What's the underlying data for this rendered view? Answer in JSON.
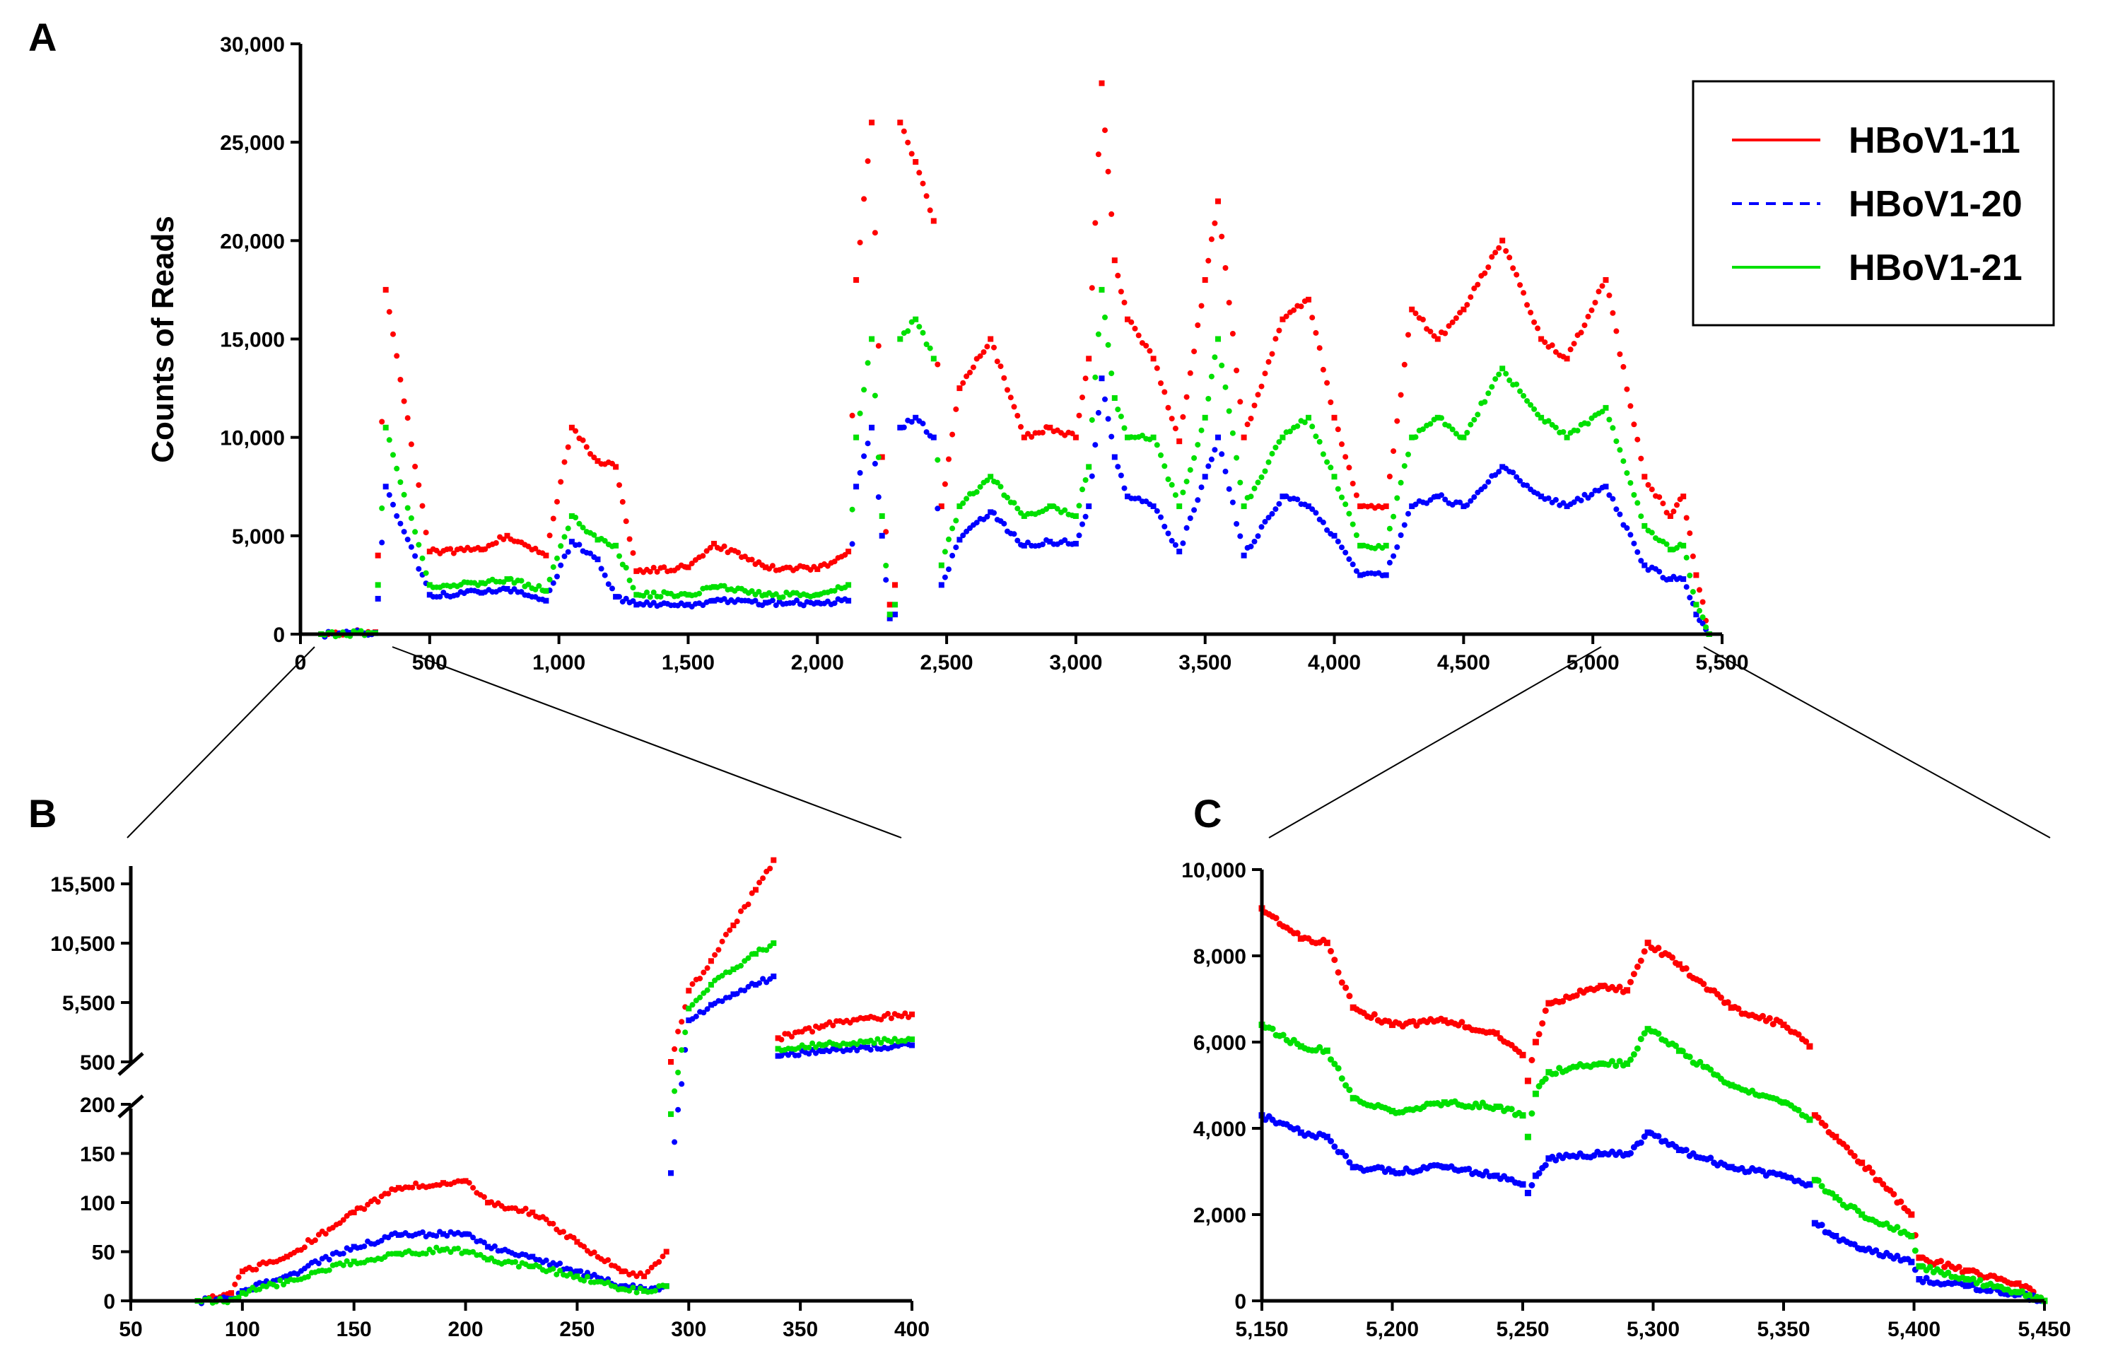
{
  "chart_data": [
    {
      "panel": "A",
      "type": "scatter",
      "title": "",
      "xlabel": "",
      "ylabel": "Counts of Reads",
      "xlim": [
        0,
        5500
      ],
      "ylim": [
        0,
        30000
      ],
      "x_ticks": [
        0,
        500,
        1000,
        1500,
        2000,
        2500,
        3000,
        3500,
        4000,
        4500,
        5000,
        5500
      ],
      "x_tick_labels": [
        "0",
        "500",
        "1,000",
        "1,500",
        "2,000",
        "2,500",
        "3,000",
        "3,500",
        "4,000",
        "4,500",
        "5,000",
        "5,500"
      ],
      "y_ticks": [
        0,
        5000,
        10000,
        15000,
        20000,
        25000,
        30000
      ],
      "y_tick_labels": [
        "0",
        "5,000",
        "10,000",
        "15,000",
        "20,000",
        "25,000",
        "30,000"
      ],
      "legend": {
        "placement": "top-right",
        "entries": [
          "HBoV1-11",
          "HBoV1-20",
          "HBoV1-21"
        ]
      },
      "x": [
        80,
        290,
        300,
        330,
        500,
        700,
        800,
        950,
        1050,
        1150,
        1220,
        1300,
        1500,
        1600,
        1800,
        2000,
        2120,
        2150,
        2210,
        2250,
        2280,
        2300,
        2320,
        2380,
        2450,
        2480,
        2550,
        2670,
        2800,
        2900,
        3000,
        3050,
        3100,
        3150,
        3200,
        3300,
        3400,
        3500,
        3550,
        3650,
        3800,
        3900,
        4000,
        4100,
        4200,
        4300,
        4400,
        4500,
        4650,
        4800,
        4900,
        5050,
        5200,
        5300,
        5350,
        5400,
        5450
      ],
      "series": [
        {
          "name": "HBoV1-11",
          "color": "#ff0000",
          "values": [
            0,
            100,
            4000,
            17500,
            4200,
            4300,
            5000,
            4000,
            10500,
            8800,
            8500,
            3200,
            3400,
            4600,
            3400,
            3300,
            4200,
            18000,
            26000,
            9000,
            1500,
            2500,
            26000,
            24000,
            21000,
            6500,
            12500,
            15000,
            10000,
            10500,
            10000,
            14000,
            28000,
            19000,
            16000,
            14000,
            9800,
            18000,
            22000,
            10000,
            16000,
            17000,
            11000,
            6500,
            6500,
            16500,
            15000,
            16500,
            20000,
            15000,
            14000,
            18000,
            8000,
            6000,
            7000,
            3000,
            0
          ]
        },
        {
          "name": "HBoV1-20",
          "color": "#0000ff",
          "values": [
            0,
            70,
            1800,
            7500,
            2000,
            2100,
            2300,
            1700,
            4700,
            3800,
            1900,
            1500,
            1500,
            1700,
            1600,
            1600,
            1700,
            7500,
            10500,
            5000,
            800,
            1000,
            10500,
            11000,
            10000,
            2500,
            4800,
            6200,
            4500,
            4700,
            4600,
            6500,
            13000,
            9000,
            7000,
            6500,
            4200,
            8000,
            10000,
            4000,
            7000,
            6500,
            5000,
            3000,
            3000,
            6500,
            7000,
            6500,
            8500,
            7000,
            6500,
            7500,
            3500,
            2800,
            2800,
            1000,
            0
          ]
        },
        {
          "name": "HBoV1-21",
          "color": "#00e000",
          "values": [
            0,
            50,
            2500,
            10500,
            2500,
            2600,
            2800,
            2200,
            6000,
            4800,
            4500,
            2000,
            2000,
            2400,
            2000,
            2000,
            2500,
            10000,
            15000,
            6000,
            1000,
            1500,
            15000,
            16000,
            14000,
            3500,
            6500,
            8000,
            6000,
            6500,
            6000,
            8500,
            17500,
            12000,
            10000,
            10000,
            6500,
            11000,
            15000,
            6500,
            10000,
            11000,
            8000,
            4500,
            4500,
            10000,
            11000,
            10000,
            13500,
            11000,
            10000,
            11500,
            5500,
            4300,
            4500,
            1500,
            0
          ]
        }
      ]
    },
    {
      "panel": "B",
      "type": "scatter",
      "title": "",
      "xlabel": "",
      "ylabel": "",
      "xlim": [
        50,
        400
      ],
      "y_axis_break": {
        "lower_range": [
          0,
          200
        ],
        "upper_range": [
          500,
          17000
        ]
      },
      "x_ticks": [
        50,
        100,
        150,
        200,
        250,
        300,
        350,
        400
      ],
      "x_tick_labels": [
        "50",
        "100",
        "150",
        "200",
        "250",
        "300",
        "350",
        "400"
      ],
      "y_ticks_lower": [
        0,
        50,
        100,
        150,
        200
      ],
      "y_tick_labels_lower": [
        "0",
        "50",
        "100",
        "150",
        "200"
      ],
      "y_ticks_upper": [
        500,
        5500,
        10500,
        15500
      ],
      "y_tick_labels_upper": [
        "500",
        "5,500",
        "10,500",
        "15,500"
      ],
      "x": [
        80,
        95,
        100,
        120,
        150,
        170,
        190,
        200,
        210,
        230,
        250,
        270,
        280,
        290,
        292,
        300,
        310,
        320,
        330,
        338,
        340,
        360,
        380,
        400
      ],
      "series": [
        {
          "name": "HBoV1-11",
          "color": "#ff0000",
          "values": [
            0,
            8,
            30,
            45,
            90,
            115,
            120,
            122,
            100,
            90,
            60,
            30,
            25,
            50,
            500,
            6500,
            9000,
            12000,
            15000,
            17500,
            2500,
            3500,
            4200,
            4500
          ]
        },
        {
          "name": "HBoV1-20",
          "color": "#0000ff",
          "values": [
            0,
            2,
            10,
            25,
            55,
            67,
            68,
            68,
            55,
            45,
            30,
            15,
            12,
            15,
            130,
            4000,
            5300,
            6200,
            7000,
            7700,
            1000,
            1400,
            1700,
            1900
          ]
        },
        {
          "name": "HBoV1-21",
          "color": "#00e000",
          "values": [
            0,
            1,
            8,
            20,
            40,
            48,
            52,
            50,
            42,
            35,
            25,
            12,
            10,
            15,
            190,
            5000,
            7000,
            8300,
            9600,
            10500,
            1600,
            1900,
            2200,
            2400
          ]
        }
      ]
    },
    {
      "panel": "C",
      "type": "scatter",
      "title": "",
      "xlabel": "",
      "ylabel": "",
      "xlim": [
        5150,
        5450
      ],
      "ylim": [
        0,
        10000
      ],
      "x_ticks": [
        5150,
        5200,
        5250,
        5300,
        5350,
        5400,
        5450
      ],
      "x_tick_labels": [
        "5,150",
        "5,200",
        "5,250",
        "5,300",
        "5,350",
        "5,400",
        "5,450"
      ],
      "y_ticks": [
        0,
        2000,
        4000,
        6000,
        8000,
        10000
      ],
      "y_tick_labels": [
        "0",
        "2,000",
        "4,000",
        "6,000",
        "8,000",
        "10,000"
      ],
      "x": [
        5150,
        5165,
        5175,
        5185,
        5200,
        5220,
        5240,
        5250,
        5252,
        5255,
        5260,
        5280,
        5290,
        5298,
        5310,
        5330,
        5350,
        5360,
        5362,
        5370,
        5380,
        5399,
        5402,
        5420,
        5440,
        5450
      ],
      "series": [
        {
          "name": "HBoV1-11",
          "color": "#ff0000",
          "values": [
            9100,
            8400,
            8300,
            6800,
            6400,
            6500,
            6200,
            5700,
            5100,
            6000,
            6900,
            7300,
            7200,
            8300,
            7800,
            6800,
            6400,
            5900,
            4300,
            3800,
            3200,
            2000,
            1000,
            700,
            400,
            0
          ]
        },
        {
          "name": "HBoV1-20",
          "color": "#0000ff",
          "values": [
            4300,
            3900,
            3800,
            3100,
            3000,
            3100,
            2900,
            2700,
            2500,
            2900,
            3300,
            3400,
            3400,
            3900,
            3500,
            3100,
            2900,
            2700,
            1800,
            1500,
            1200,
            900,
            500,
            350,
            150,
            0
          ]
        },
        {
          "name": "HBoV1-21",
          "color": "#00e000",
          "values": [
            6400,
            5900,
            5800,
            4700,
            4400,
            4600,
            4500,
            4300,
            3800,
            4800,
            5300,
            5500,
            5500,
            6300,
            5800,
            5000,
            4600,
            4200,
            2800,
            2400,
            2000,
            1500,
            800,
            500,
            200,
            0
          ]
        }
      ]
    }
  ]
}
